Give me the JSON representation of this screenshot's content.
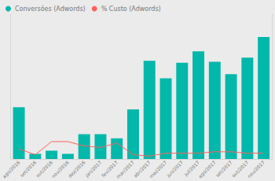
{
  "chart_data": {
    "type": "bar",
    "categories": [
      "ago/2016",
      "set/2016",
      "out/2016",
      "nov/2016",
      "dez/2016",
      "jan/2017",
      "fev/2017",
      "mar/2017",
      "abr/2017",
      "mai/2017",
      "jun/2017",
      "jul/2017",
      "ago/2017",
      "set/2017",
      "out/2017",
      "nov/2017"
    ],
    "series": [
      {
        "name": "Conversões (Adwords)",
        "type": "bar",
        "color": "#01b8aa",
        "values": [
          50,
          5,
          8,
          5,
          24,
          24,
          20,
          48,
          95,
          78,
          93,
          104,
          94,
          82,
          98,
          118
        ]
      },
      {
        "name": "% Custo (Adwords)",
        "type": "line",
        "axis": "y2",
        "color": "#fd625e",
        "values": [
          7,
          3,
          12,
          12,
          9,
          8,
          11,
          3,
          2,
          4,
          4,
          4,
          5,
          5,
          4,
          4
        ]
      }
    ],
    "ylim": [
      0,
      140
    ],
    "y2lim": [
      0,
      100
    ],
    "grid": false,
    "legend": "top-left",
    "tick_labels": "x"
  }
}
